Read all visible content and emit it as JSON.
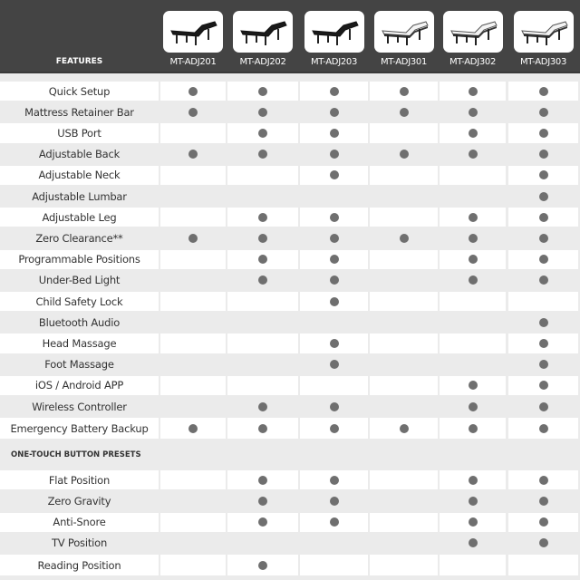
{
  "header": {
    "features_label": "FEATURES",
    "models": [
      "MT-ADJ201",
      "MT-ADJ202",
      "MT-ADJ203",
      "MT-ADJ301",
      "MT-ADJ302",
      "MT-ADJ303"
    ],
    "thumb_styles": [
      "black",
      "black",
      "black",
      "white",
      "white",
      "white"
    ]
  },
  "features": [
    {
      "label": "Quick Setup",
      "has": [
        1,
        1,
        1,
        1,
        1,
        1
      ]
    },
    {
      "label": "Mattress Retainer Bar",
      "has": [
        1,
        1,
        1,
        1,
        1,
        1
      ]
    },
    {
      "label": "USB Port",
      "has": [
        0,
        1,
        1,
        0,
        1,
        1
      ]
    },
    {
      "label": "Adjustable Back",
      "has": [
        1,
        1,
        1,
        1,
        1,
        1
      ]
    },
    {
      "label": "Adjustable Neck",
      "has": [
        0,
        0,
        1,
        0,
        0,
        1
      ]
    },
    {
      "label": "Adjustable Lumbar",
      "has": [
        0,
        0,
        0,
        0,
        0,
        1
      ]
    },
    {
      "label": "Adjustable Leg",
      "has": [
        0,
        1,
        1,
        0,
        1,
        1
      ]
    },
    {
      "label": "Zero Clearance**",
      "has": [
        1,
        1,
        1,
        1,
        1,
        1
      ]
    },
    {
      "label": "Programmable Positions",
      "has": [
        0,
        1,
        1,
        0,
        1,
        1
      ]
    },
    {
      "label": "Under-Bed Light",
      "has": [
        0,
        1,
        1,
        0,
        1,
        1
      ]
    },
    {
      "label": "Child Safety Lock",
      "has": [
        0,
        0,
        1,
        0,
        0,
        0
      ]
    },
    {
      "label": "Bluetooth Audio",
      "has": [
        0,
        0,
        0,
        0,
        0,
        1
      ]
    },
    {
      "label": "Head Massage",
      "has": [
        0,
        0,
        1,
        0,
        0,
        1
      ]
    },
    {
      "label": "Foot Massage",
      "has": [
        0,
        0,
        1,
        0,
        0,
        1
      ]
    },
    {
      "label": "iOS / Android APP",
      "has": [
        0,
        0,
        0,
        0,
        1,
        1
      ]
    },
    {
      "label": "Wireless Controller",
      "has": [
        0,
        1,
        1,
        0,
        1,
        1
      ]
    },
    {
      "label": "Emergency Battery Backup",
      "has": [
        1,
        1,
        1,
        1,
        1,
        1
      ]
    }
  ],
  "presets_section": {
    "title": "ONE-TOUCH BUTTON PRESETS",
    "items": [
      {
        "label": "Flat Position",
        "has": [
          0,
          1,
          1,
          0,
          1,
          1
        ]
      },
      {
        "label": "Zero Gravity",
        "has": [
          0,
          1,
          1,
          0,
          1,
          1
        ]
      },
      {
        "label": "Anti-Snore",
        "has": [
          0,
          1,
          1,
          0,
          1,
          1
        ]
      },
      {
        "label": "TV Position",
        "has": [
          0,
          0,
          0,
          0,
          1,
          1
        ]
      },
      {
        "label": "Reading Position",
        "has": [
          0,
          1,
          0,
          0,
          0,
          0
        ]
      }
    ]
  },
  "colors": {
    "header_bg": "#444444",
    "dot": "#6f6f6f",
    "stripe": "#ebebeb"
  }
}
